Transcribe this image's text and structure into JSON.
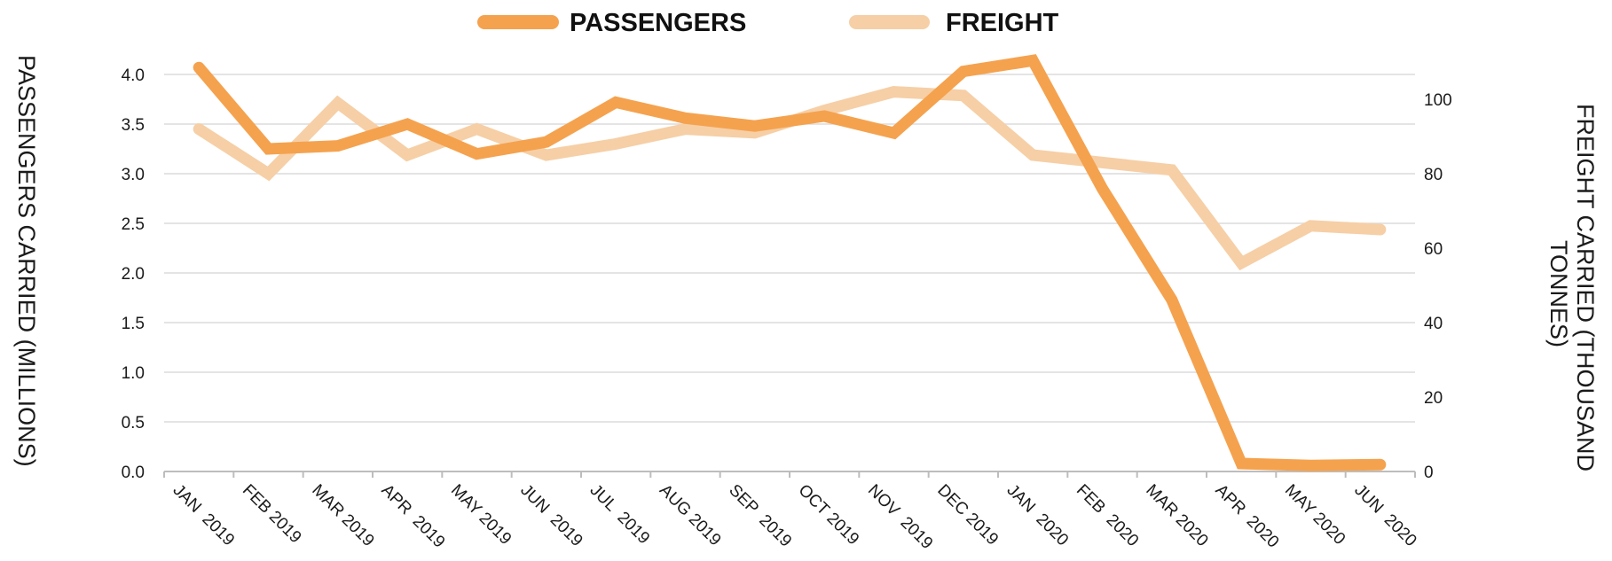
{
  "chart_data": {
    "type": "line",
    "title": "",
    "categories": [
      "JAN  2019",
      "FEB 2019",
      "MAR 2019",
      "APR  2019",
      "MAY 2019",
      "JUN  2019",
      "JUL  2019",
      "AUG 2019",
      "SEP  2019",
      "OCT 2019",
      "NOV  2019",
      "DEC 2019",
      "JAN  2020",
      "FEB  2020",
      "MAR 2020",
      "APR  2020",
      "MAY 2020",
      "JUN  2020"
    ],
    "series": [
      {
        "name": "PASSENGERS",
        "axis": "left",
        "color": "#F5A24E",
        "values": [
          4.07,
          3.25,
          3.28,
          3.5,
          3.2,
          3.32,
          3.72,
          3.56,
          3.48,
          3.58,
          3.41,
          4.03,
          4.14,
          2.85,
          1.73,
          0.08,
          0.06,
          0.07
        ]
      },
      {
        "name": "FREIGHT",
        "axis": "right",
        "color": "#F6CFA6",
        "values": [
          92,
          80,
          99,
          85,
          92,
          85,
          88,
          92,
          91,
          97,
          102,
          101,
          85,
          83,
          81,
          56,
          66,
          65
        ]
      }
    ],
    "ylabel_left": "PASSENGERS CARRIED (MILLIONS)",
    "ylabel_right_lines": [
      "FREIGHT CARRIED (THOUSAND",
      "TONNES)"
    ],
    "ylim_left": [
      0,
      4.0
    ],
    "yticks_left": [
      "0.0",
      "0.5",
      "1.0",
      "1.5",
      "2.0",
      "2.5",
      "3.0",
      "3.5",
      "4.0"
    ],
    "ylim_right": [
      0,
      100
    ],
    "yticks_right": [
      "0",
      "20",
      "40",
      "60",
      "80",
      "100"
    ],
    "grid": true,
    "legend_position": "top-center"
  }
}
